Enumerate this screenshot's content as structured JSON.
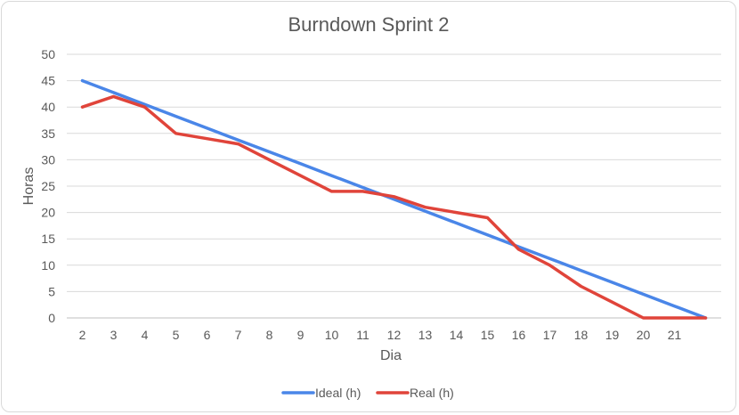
{
  "chart_data": {
    "type": "line",
    "title": "Burndown Sprint 2",
    "xlabel": "Dia",
    "ylabel": "Horas",
    "ylim": [
      0,
      50
    ],
    "yticks": [
      0,
      5,
      10,
      15,
      20,
      25,
      30,
      35,
      40,
      45,
      50
    ],
    "categories": [
      "2",
      "3",
      "4",
      "5",
      "6",
      "7",
      "8",
      "9",
      "10",
      "11",
      "12",
      "13",
      "14",
      "15",
      "16",
      "17",
      "18",
      "19",
      "20",
      "21",
      ""
    ],
    "grid": true,
    "legend_position": "bottom",
    "series": [
      {
        "name": "Ideal (h)",
        "color": "#4a86e8",
        "values": [
          45,
          42.75,
          40.5,
          38.25,
          36,
          33.75,
          31.5,
          29.25,
          27,
          24.75,
          22.5,
          20.25,
          18,
          15.75,
          13.5,
          11.25,
          9,
          6.75,
          4.5,
          2.25,
          0
        ]
      },
      {
        "name": "Real (h)",
        "color": "#e0443a",
        "values": [
          40,
          42,
          40,
          35,
          34,
          33,
          30,
          27,
          24,
          24,
          23,
          21,
          20,
          19,
          13,
          10,
          6,
          3,
          0,
          0,
          0
        ]
      }
    ]
  }
}
